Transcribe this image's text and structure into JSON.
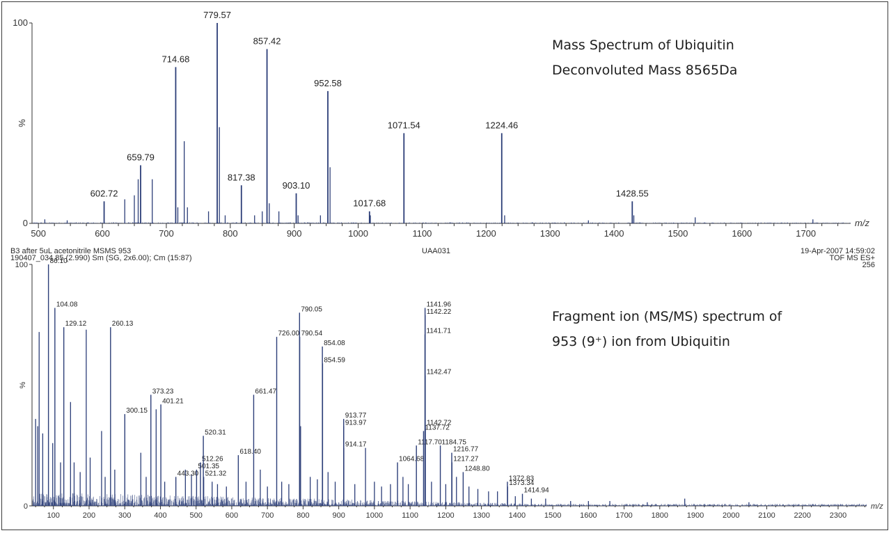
{
  "chart_data": [
    {
      "type": "line",
      "title": "",
      "annotations": [
        "Mass Spectrum of Ubiquitin",
        "Deconvoluted Mass 8565Da"
      ],
      "xlabel": "m/z",
      "ylabel": "%",
      "xlim": [
        490,
        1770
      ],
      "ylim": [
        0,
        100
      ],
      "x_ticks": [
        500,
        600,
        700,
        800,
        900,
        1000,
        1100,
        1200,
        1300,
        1400,
        1500,
        1600,
        1700
      ],
      "y_ticks": [
        0,
        100
      ],
      "color": "#2c3e78",
      "peaks": [
        {
          "x": 602.72,
          "y": 11,
          "label": "602.72"
        },
        {
          "x": 659.79,
          "y": 29,
          "label": "659.79"
        },
        {
          "x": 714.68,
          "y": 78,
          "label": "714.68"
        },
        {
          "x": 779.57,
          "y": 100,
          "label": "779.57"
        },
        {
          "x": 817.38,
          "y": 19,
          "label": "817.38"
        },
        {
          "x": 857.42,
          "y": 87,
          "label": "857.42"
        },
        {
          "x": 903.1,
          "y": 15,
          "label": "903.10"
        },
        {
          "x": 952.58,
          "y": 66,
          "label": "952.58"
        },
        {
          "x": 1017.68,
          "y": 6,
          "label": "1017.68"
        },
        {
          "x": 1071.54,
          "y": 45,
          "label": "1071.54"
        },
        {
          "x": 1224.46,
          "y": 45,
          "label": "1224.46"
        },
        {
          "x": 1428.55,
          "y": 11,
          "label": "1428.55"
        }
      ],
      "minor_peaks": [
        {
          "x": 635,
          "y": 12
        },
        {
          "x": 650,
          "y": 14
        },
        {
          "x": 656,
          "y": 22
        },
        {
          "x": 678,
          "y": 22
        },
        {
          "x": 718,
          "y": 8
        },
        {
          "x": 728,
          "y": 41
        },
        {
          "x": 733,
          "y": 8
        },
        {
          "x": 766,
          "y": 6
        },
        {
          "x": 783,
          "y": 48
        },
        {
          "x": 792,
          "y": 4
        },
        {
          "x": 838,
          "y": 4
        },
        {
          "x": 850,
          "y": 6
        },
        {
          "x": 861,
          "y": 10
        },
        {
          "x": 876,
          "y": 6
        },
        {
          "x": 906,
          "y": 4
        },
        {
          "x": 941,
          "y": 4
        },
        {
          "x": 956,
          "y": 28
        },
        {
          "x": 1019,
          "y": 4
        },
        {
          "x": 1229,
          "y": 4
        },
        {
          "x": 1431,
          "y": 4
        },
        {
          "x": 1527,
          "y": 3
        },
        {
          "x": 1711,
          "y": 2
        },
        {
          "x": 1360,
          "y": 1.5
        },
        {
          "x": 510,
          "y": 2
        },
        {
          "x": 545,
          "y": 1.5
        }
      ]
    },
    {
      "type": "line",
      "title": "",
      "annotations": [
        "Fragment ion (MS/MS) spectrum of",
        "953 (9⁺) ion from Ubiquitin"
      ],
      "header": {
        "line1_left": "B3 after 5uL acetonitrile MSMS 953",
        "line1_center": "UAA031",
        "line1_right": "19-Apr-2007  14:59:02",
        "line2_left": "190407_034  85 (2.990) Sm (SG, 2x6.00); Cm (15:87)",
        "line2_right": "TOF MS ES+",
        "line3_right": "256"
      },
      "xlabel": "m/z",
      "ylabel": "%",
      "xlim": [
        40,
        2380
      ],
      "ylim": [
        0,
        100
      ],
      "x_ticks": [
        100,
        200,
        300,
        400,
        500,
        600,
        700,
        800,
        900,
        1000,
        1100,
        1200,
        1300,
        1400,
        1500,
        1600,
        1700,
        1800,
        1900,
        2000,
        2100,
        2200,
        2300
      ],
      "y_ticks": [
        0,
        100
      ],
      "color": "#2c3e78",
      "peaks": [
        {
          "x": 86.1,
          "y": 100,
          "label": "86.10"
        },
        {
          "x": 104.08,
          "y": 82,
          "label": "104.08"
        },
        {
          "x": 129.12,
          "y": 74,
          "label": "129.12"
        },
        {
          "x": 260.13,
          "y": 74,
          "label": "260.13"
        },
        {
          "x": 300.15,
          "y": 38,
          "label": "300.15"
        },
        {
          "x": 373.23,
          "y": 46,
          "label": "373.23"
        },
        {
          "x": 401.21,
          "y": 42,
          "label": "401.21"
        },
        {
          "x": 443.3,
          "y": 12,
          "label": "443.30"
        },
        {
          "x": 501.35,
          "y": 15,
          "label": "501.35"
        },
        {
          "x": 512.26,
          "y": 18,
          "label": "512.26"
        },
        {
          "x": 520.31,
          "y": 29,
          "label": "520.31"
        },
        {
          "x": 521.32,
          "y": 12,
          "label": "521.32"
        },
        {
          "x": 618.4,
          "y": 21,
          "label": "618.40"
        },
        {
          "x": 661.47,
          "y": 46,
          "label": "661.47"
        },
        {
          "x": 726.0,
          "y": 70,
          "label": "726.00"
        },
        {
          "x": 790.05,
          "y": 80,
          "label": "790.05"
        },
        {
          "x": 790.54,
          "y": 70,
          "label": "790.54"
        },
        {
          "x": 854.08,
          "y": 66,
          "label": "854.08"
        },
        {
          "x": 854.59,
          "y": 59,
          "label": "854.59"
        },
        {
          "x": 913.77,
          "y": 36,
          "label": "913.77"
        },
        {
          "x": 913.97,
          "y": 33,
          "label": "913.97"
        },
        {
          "x": 914.17,
          "y": 24,
          "label": "914.17"
        },
        {
          "x": 1064.68,
          "y": 18,
          "label": "1064.68"
        },
        {
          "x": 1117.7,
          "y": 25,
          "label": "1117.70"
        },
        {
          "x": 1137.72,
          "y": 31,
          "label": "1137.72"
        },
        {
          "x": 1141.71,
          "y": 71,
          "label": "1141.71"
        },
        {
          "x": 1141.96,
          "y": 82,
          "label": "1141.96"
        },
        {
          "x": 1142.22,
          "y": 79,
          "label": "1142.22"
        },
        {
          "x": 1142.47,
          "y": 54,
          "label": "1142.47"
        },
        {
          "x": 1142.72,
          "y": 33,
          "label": "1142.72"
        },
        {
          "x": 1184.75,
          "y": 25,
          "label": "1184.75"
        },
        {
          "x": 1216.77,
          "y": 22,
          "label": "1216.77"
        },
        {
          "x": 1217.27,
          "y": 18,
          "label": "1217.27"
        },
        {
          "x": 1248.8,
          "y": 14,
          "label": "1248.80"
        },
        {
          "x": 1372.83,
          "y": 10,
          "label": "1372.83"
        },
        {
          "x": 1373.34,
          "y": 8,
          "label": "1373.34"
        },
        {
          "x": 1414.94,
          "y": 5,
          "label": "1414.94"
        }
      ],
      "minor_peaks": [
        {
          "x": 50,
          "y": 36
        },
        {
          "x": 56,
          "y": 33
        },
        {
          "x": 60,
          "y": 72
        },
        {
          "x": 70,
          "y": 30
        },
        {
          "x": 98,
          "y": 26
        },
        {
          "x": 120,
          "y": 18
        },
        {
          "x": 148,
          "y": 43
        },
        {
          "x": 158,
          "y": 18
        },
        {
          "x": 175,
          "y": 14
        },
        {
          "x": 192,
          "y": 73
        },
        {
          "x": 203,
          "y": 20
        },
        {
          "x": 235,
          "y": 31
        },
        {
          "x": 245,
          "y": 12
        },
        {
          "x": 272,
          "y": 15
        },
        {
          "x": 345,
          "y": 22
        },
        {
          "x": 360,
          "y": 12
        },
        {
          "x": 388,
          "y": 40
        },
        {
          "x": 412,
          "y": 10
        },
        {
          "x": 470,
          "y": 15
        },
        {
          "x": 487,
          "y": 13
        },
        {
          "x": 545,
          "y": 10
        },
        {
          "x": 560,
          "y": 9
        },
        {
          "x": 585,
          "y": 8
        },
        {
          "x": 640,
          "y": 10
        },
        {
          "x": 680,
          "y": 15
        },
        {
          "x": 700,
          "y": 8
        },
        {
          "x": 740,
          "y": 10
        },
        {
          "x": 760,
          "y": 9
        },
        {
          "x": 793,
          "y": 33
        },
        {
          "x": 820,
          "y": 12
        },
        {
          "x": 840,
          "y": 11
        },
        {
          "x": 870,
          "y": 14
        },
        {
          "x": 890,
          "y": 10
        },
        {
          "x": 945,
          "y": 9
        },
        {
          "x": 975,
          "y": 24
        },
        {
          "x": 1000,
          "y": 10
        },
        {
          "x": 1020,
          "y": 8
        },
        {
          "x": 1045,
          "y": 9
        },
        {
          "x": 1080,
          "y": 12
        },
        {
          "x": 1095,
          "y": 9
        },
        {
          "x": 1160,
          "y": 10
        },
        {
          "x": 1200,
          "y": 9
        },
        {
          "x": 1230,
          "y": 12
        },
        {
          "x": 1265,
          "y": 8
        },
        {
          "x": 1290,
          "y": 7
        },
        {
          "x": 1320,
          "y": 6
        },
        {
          "x": 1345,
          "y": 6
        },
        {
          "x": 1395,
          "y": 4
        },
        {
          "x": 1440,
          "y": 3
        },
        {
          "x": 1480,
          "y": 3
        },
        {
          "x": 1550,
          "y": 2
        },
        {
          "x": 1600,
          "y": 2
        },
        {
          "x": 1660,
          "y": 2
        },
        {
          "x": 1765,
          "y": 1.5
        },
        {
          "x": 1870,
          "y": 3
        },
        {
          "x": 2050,
          "y": 1.5
        }
      ]
    }
  ]
}
